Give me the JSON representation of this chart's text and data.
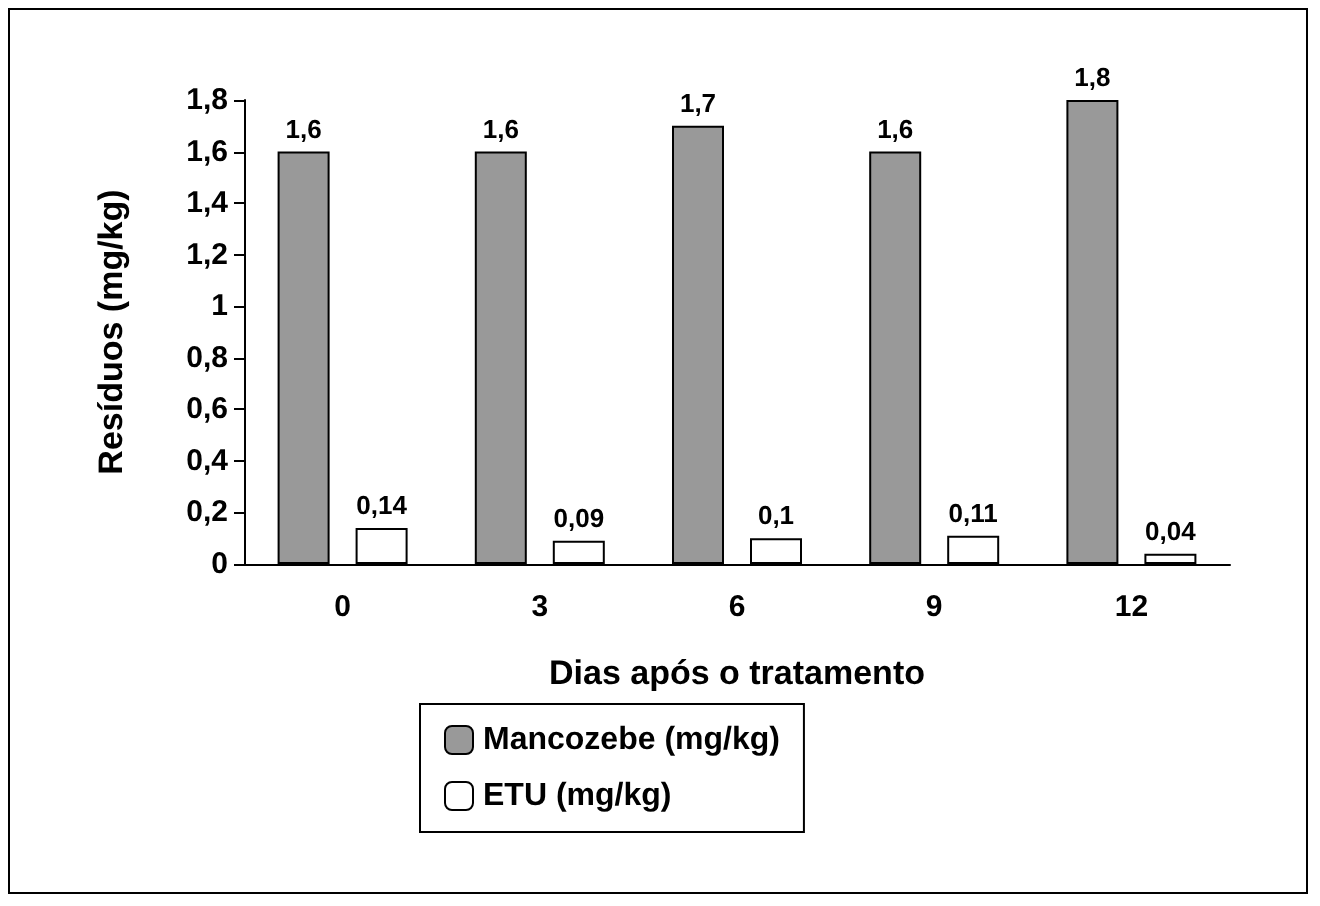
{
  "chart_data": {
    "type": "bar",
    "categories": [
      "0",
      "3",
      "6",
      "9",
      "12"
    ],
    "series": [
      {
        "name": "Mancozebe (mg/kg)",
        "color": "#999999",
        "values": [
          1.6,
          1.6,
          1.7,
          1.6,
          1.8
        ],
        "value_labels": [
          "1,6",
          "1,6",
          "1,7",
          "1,6",
          "1,8"
        ]
      },
      {
        "name": "ETU (mg/kg)",
        "color": "#ffffff",
        "values": [
          0.14,
          0.09,
          0.1,
          0.11,
          0.04
        ],
        "value_labels": [
          "0,14",
          "0,09",
          "0,1",
          "0,11",
          "0,04"
        ]
      }
    ],
    "xlabel": "Dias após o tratamento",
    "ylabel": "Resíduos (mg/kg)",
    "ylim": [
      0,
      1.8
    ],
    "yticks": [
      0,
      {
        "value": 0.2,
        "label": "0,2"
      },
      {
        "value": 0.4,
        "label": "0,4"
      },
      {
        "value": 0.6,
        "label": "0,6"
      },
      {
        "value": 0.8,
        "label": "0,8"
      },
      1,
      {
        "value": 1.2,
        "label": "1,2"
      },
      {
        "value": 1.4,
        "label": "1,4"
      },
      {
        "value": 1.6,
        "label": "1,6"
      },
      {
        "value": 1.8,
        "label": "1,8"
      }
    ],
    "grid": false,
    "legend": "bottom"
  }
}
